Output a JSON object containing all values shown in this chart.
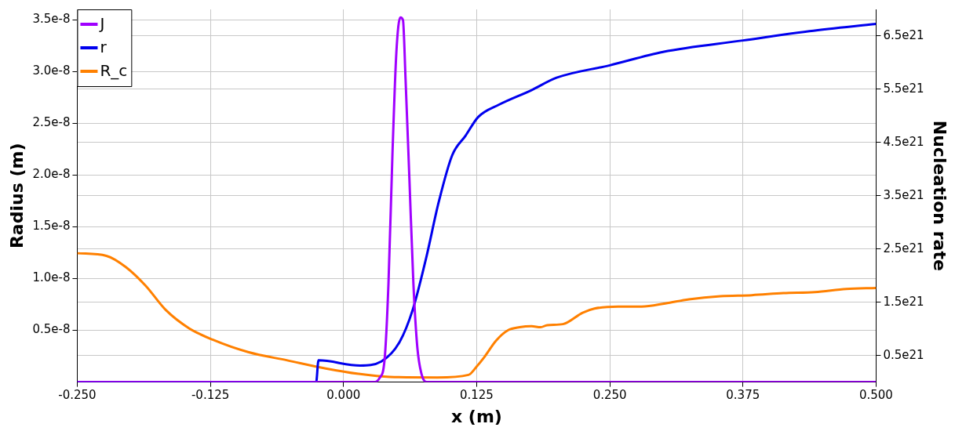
{
  "chart_data": {
    "type": "line",
    "xlabel": "x (m)",
    "ylabel": "Radius (m)",
    "y2label": "Nucleation rate",
    "xlim": [
      -0.25,
      0.5
    ],
    "xticks": [
      {
        "value": -0.25,
        "label": "-0.250"
      },
      {
        "value": -0.125,
        "label": "-0.125"
      },
      {
        "value": 0,
        "label": "0.000"
      },
      {
        "value": 0.125,
        "label": "0.125"
      },
      {
        "value": 0.25,
        "label": "0.250"
      },
      {
        "value": 0.375,
        "label": "0.375"
      },
      {
        "value": 0.5,
        "label": "0.500"
      }
    ],
    "ylim": [
      0,
      3.6e-08
    ],
    "yticks": [
      {
        "value": 5e-09,
        "label": "0.5e-8"
      },
      {
        "value": 1e-08,
        "label": "1.0e-8"
      },
      {
        "value": 1.5e-08,
        "label": "1.5e-8"
      },
      {
        "value": 2e-08,
        "label": "2.0e-8"
      },
      {
        "value": 2.5e-08,
        "label": "2.5e-8"
      },
      {
        "value": 3e-08,
        "label": "3.0e-8"
      },
      {
        "value": 3.5e-08,
        "label": "3.5e-8"
      }
    ],
    "y2lim": [
      0,
      7e+21
    ],
    "y2ticks": [
      {
        "value": 5e+20,
        "label": "0.5e21"
      },
      {
        "value": 1.5e+21,
        "label": "1.5e21"
      },
      {
        "value": 2.5e+21,
        "label": "2.5e21"
      },
      {
        "value": 3.5e+21,
        "label": "3.5e21"
      },
      {
        "value": 4.5e+21,
        "label": "4.5e21"
      },
      {
        "value": 5.5e+21,
        "label": "5.5e21"
      },
      {
        "value": 6.5e+21,
        "label": "6.5e21"
      }
    ],
    "grid": true,
    "legend": "top left",
    "marker": "none",
    "line_style": "solid",
    "series": [
      {
        "name": "J",
        "color": "#a000ff",
        "axis": "y2",
        "x": [
          -0.25,
          0.0286,
          0.0336,
          0.0385,
          0.0422,
          0.0459,
          0.0496,
          0.0533,
          0.0558,
          0.0582,
          0.0619,
          0.0656,
          0.0693,
          0.073,
          0.078,
          0.5
        ],
        "values": [
          0,
          0,
          7e+19,
          4.1e+20,
          1.85e+21,
          4.26e+21,
          6.19e+21,
          6.85e+21,
          6.8e+21,
          5.71e+21,
          3.79e+21,
          1.85e+21,
          6.5e+20,
          1.7e+20,
          0,
          0
        ]
      },
      {
        "name": "r",
        "color": "#0000ee",
        "x": [
          -0.25,
          -0.0257,
          -0.0235,
          0.0155,
          0.0355,
          0.0525,
          0.065,
          0.0776,
          0.0894,
          0.102,
          0.1146,
          0.1264,
          0.146,
          0.1765,
          0.2,
          0.25,
          0.3,
          0.375,
          0.4375,
          0.5
        ],
        "values": [
          0,
          0,
          2.1e-09,
          1.6e-09,
          2e-09,
          3.85e-09,
          7e-09,
          1.2e-08,
          1.74e-08,
          2.19e-08,
          2.38e-08,
          2.56e-08,
          2.68e-08,
          2.82e-08,
          2.94e-08,
          3.06e-08,
          3.19e-08,
          3.3e-08,
          3.39e-08,
          3.46e-08
        ]
      },
      {
        "name": "R_c",
        "color": "#ff8000",
        "x": [
          -0.25,
          -0.2227,
          -0.2042,
          -0.1857,
          -0.1672,
          -0.145,
          -0.1229,
          -0.0896,
          -0.0527,
          -0.0157,
          0.0139,
          0.0434,
          0.0878,
          0.1173,
          0.125,
          0.1321,
          0.1432,
          0.1543,
          0.1654,
          0.1765,
          0.185,
          0.1912,
          0.206,
          0.2245,
          0.2356,
          0.2578,
          0.2799,
          0.3021,
          0.3243,
          0.3538,
          0.3834,
          0.413,
          0.4425,
          0.4721,
          0.5
        ],
        "values": [
          1.245e-08,
          1.22e-08,
          1.11e-08,
          9.3e-09,
          7e-09,
          5.2e-09,
          4.1e-09,
          2.9e-09,
          2.1e-09,
          1.3e-09,
          8e-10,
          5e-10,
          4.5e-10,
          7e-10,
          1.5e-09,
          2.4e-09,
          4e-09,
          5e-09,
          5.3e-09,
          5.4e-09,
          5.3e-09,
          5.5e-09,
          5.6e-09,
          6.7e-09,
          7.1e-09,
          7.3e-09,
          7.3e-09,
          7.6e-09,
          8e-09,
          8.3e-09,
          8.4e-09,
          8.6e-09,
          8.7e-09,
          9e-09,
          9.1e-09
        ]
      }
    ]
  }
}
